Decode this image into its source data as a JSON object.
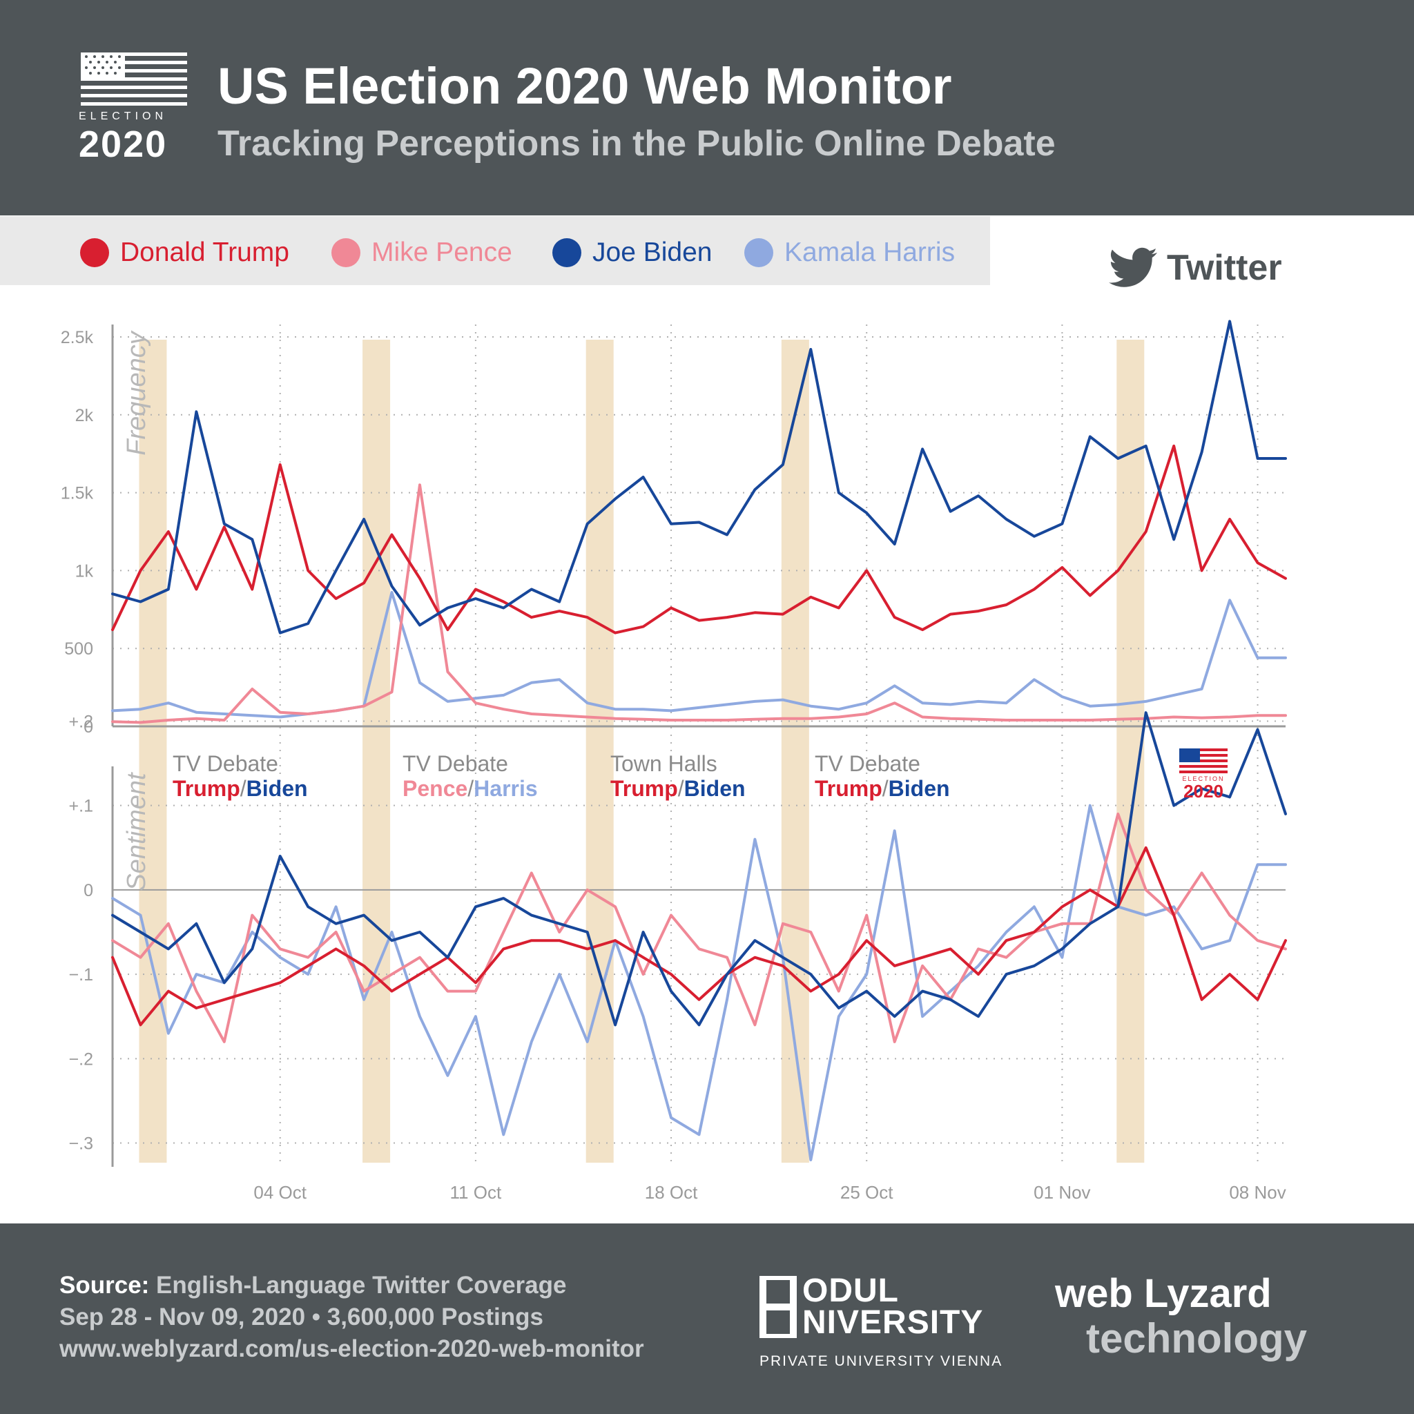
{
  "header": {
    "logo_small": "ELECTION",
    "logo_year": "2020",
    "title": "US Election 2020 Web Monitor",
    "subtitle": "Tracking Perceptions in the Public Online Debate"
  },
  "legend": [
    {
      "name": "Donald Trump",
      "color": "#d81f30"
    },
    {
      "name": "Mike Pence",
      "color": "#f08896"
    },
    {
      "name": "Joe Biden",
      "color": "#17479a"
    },
    {
      "name": "Kamala Harris",
      "color": "#8fa9e0"
    }
  ],
  "platform": {
    "label": "Twitter",
    "icon": "twitter-bird-icon"
  },
  "chart_data": [
    {
      "type": "line",
      "title": "",
      "ylabel": "Frequency",
      "xlabel": "",
      "ylim": [
        0,
        2500
      ],
      "yticks": [
        0,
        500,
        1000,
        1500,
        2000,
        2500
      ],
      "ytick_labels": [
        "0",
        "500",
        "1k",
        "1.5k",
        "2k",
        "2.5k"
      ],
      "x_start": "2020-09-28",
      "x_end": "2020-11-09",
      "grid": true,
      "series": [
        {
          "name": "Donald Trump",
          "color": "#d81f30",
          "x": [
            "2020-09-28",
            "2020-09-29",
            "2020-09-30",
            "2020-10-01",
            "2020-10-02",
            "2020-10-03",
            "2020-10-04",
            "2020-10-05",
            "2020-10-06",
            "2020-10-07",
            "2020-10-08",
            "2020-10-09",
            "2020-10-10",
            "2020-10-11",
            "2020-10-12",
            "2020-10-13",
            "2020-10-14",
            "2020-10-15",
            "2020-10-16",
            "2020-10-17",
            "2020-10-18",
            "2020-10-19",
            "2020-10-20",
            "2020-10-21",
            "2020-10-22",
            "2020-10-23",
            "2020-10-24",
            "2020-10-25",
            "2020-10-26",
            "2020-10-27",
            "2020-10-28",
            "2020-10-29",
            "2020-10-30",
            "2020-10-31",
            "2020-11-01",
            "2020-11-02",
            "2020-11-03",
            "2020-11-04",
            "2020-11-05",
            "2020-11-06",
            "2020-11-07",
            "2020-11-08",
            "2020-11-09"
          ],
          "values": [
            620,
            1000,
            1250,
            880,
            1280,
            880,
            1680,
            1000,
            820,
            920,
            1230,
            950,
            620,
            880,
            800,
            700,
            740,
            700,
            600,
            640,
            760,
            680,
            700,
            730,
            720,
            830,
            760,
            1000,
            700,
            620,
            720,
            740,
            780,
            880,
            1020,
            840,
            1000,
            1250,
            1800,
            1000,
            1330,
            1050,
            950
          ]
        },
        {
          "name": "Mike Pence",
          "color": "#f08896",
          "x": [
            "2020-09-28",
            "2020-09-29",
            "2020-09-30",
            "2020-10-01",
            "2020-10-02",
            "2020-10-03",
            "2020-10-04",
            "2020-10-05",
            "2020-10-06",
            "2020-10-07",
            "2020-10-08",
            "2020-10-09",
            "2020-10-10",
            "2020-10-11",
            "2020-10-12",
            "2020-10-13",
            "2020-10-14",
            "2020-10-15",
            "2020-10-16",
            "2020-10-17",
            "2020-10-18",
            "2020-10-19",
            "2020-10-20",
            "2020-10-21",
            "2020-10-22",
            "2020-10-23",
            "2020-10-24",
            "2020-10-25",
            "2020-10-26",
            "2020-10-27",
            "2020-10-28",
            "2020-10-29",
            "2020-10-30",
            "2020-10-31",
            "2020-11-01",
            "2020-11-02",
            "2020-11-03",
            "2020-11-04",
            "2020-11-05",
            "2020-11-06",
            "2020-11-07",
            "2020-11-08",
            "2020-11-09"
          ],
          "values": [
            30,
            25,
            40,
            50,
            40,
            240,
            90,
            80,
            100,
            130,
            220,
            1550,
            350,
            150,
            110,
            80,
            70,
            60,
            50,
            45,
            40,
            40,
            40,
            45,
            50,
            50,
            60,
            80,
            150,
            60,
            50,
            45,
            40,
            40,
            40,
            40,
            45,
            50,
            60,
            55,
            60,
            70,
            70
          ]
        },
        {
          "name": "Joe Biden",
          "color": "#17479a",
          "x": [
            "2020-09-28",
            "2020-09-29",
            "2020-09-30",
            "2020-10-01",
            "2020-10-02",
            "2020-10-03",
            "2020-10-04",
            "2020-10-05",
            "2020-10-06",
            "2020-10-07",
            "2020-10-08",
            "2020-10-09",
            "2020-10-10",
            "2020-10-11",
            "2020-10-12",
            "2020-10-13",
            "2020-10-14",
            "2020-10-15",
            "2020-10-16",
            "2020-10-17",
            "2020-10-18",
            "2020-10-19",
            "2020-10-20",
            "2020-10-21",
            "2020-10-22",
            "2020-10-23",
            "2020-10-24",
            "2020-10-25",
            "2020-10-26",
            "2020-10-27",
            "2020-10-28",
            "2020-10-29",
            "2020-10-30",
            "2020-10-31",
            "2020-11-01",
            "2020-11-02",
            "2020-11-03",
            "2020-11-04",
            "2020-11-05",
            "2020-11-06",
            "2020-11-07",
            "2020-11-08",
            "2020-11-09"
          ],
          "values": [
            850,
            800,
            880,
            2020,
            1300,
            1200,
            600,
            660,
            1000,
            1330,
            900,
            650,
            760,
            820,
            760,
            880,
            800,
            1300,
            1460,
            1600,
            1300,
            1310,
            1230,
            1520,
            1680,
            2420,
            1500,
            1370,
            1170,
            1780,
            1380,
            1480,
            1330,
            1220,
            1300,
            1860,
            1720,
            1800,
            1200,
            1760,
            2600,
            1720,
            1720
          ]
        },
        {
          "name": "Kamala Harris",
          "color": "#8fa9e0",
          "x": [
            "2020-09-28",
            "2020-09-29",
            "2020-09-30",
            "2020-10-01",
            "2020-10-02",
            "2020-10-03",
            "2020-10-04",
            "2020-10-05",
            "2020-10-06",
            "2020-10-07",
            "2020-10-08",
            "2020-10-09",
            "2020-10-10",
            "2020-10-11",
            "2020-10-12",
            "2020-10-13",
            "2020-10-14",
            "2020-10-15",
            "2020-10-16",
            "2020-10-17",
            "2020-10-18",
            "2020-10-19",
            "2020-10-20",
            "2020-10-21",
            "2020-10-22",
            "2020-10-23",
            "2020-10-24",
            "2020-10-25",
            "2020-10-26",
            "2020-10-27",
            "2020-10-28",
            "2020-10-29",
            "2020-10-30",
            "2020-10-31",
            "2020-11-01",
            "2020-11-02",
            "2020-11-03",
            "2020-11-04",
            "2020-11-05",
            "2020-11-06",
            "2020-11-07",
            "2020-11-08",
            "2020-11-09"
          ],
          "values": [
            100,
            110,
            150,
            90,
            80,
            70,
            60,
            80,
            100,
            130,
            860,
            280,
            160,
            180,
            200,
            280,
            300,
            150,
            110,
            110,
            100,
            120,
            140,
            160,
            170,
            130,
            110,
            150,
            260,
            150,
            140,
            160,
            150,
            300,
            190,
            130,
            140,
            160,
            200,
            240,
            810,
            440,
            440
          ]
        }
      ]
    },
    {
      "type": "line",
      "title": "",
      "ylabel": "Sentiment",
      "xlabel": "",
      "ylim": [
        -0.3,
        0.2
      ],
      "yticks": [
        -0.3,
        -0.2,
        -0.1,
        0,
        0.1,
        0.2
      ],
      "ytick_labels": [
        "−.3",
        "−.2",
        "−.1",
        "0",
        "+.1",
        "+.2"
      ],
      "x_tick_labels": [
        "04 Oct",
        "11 Oct",
        "18 Oct",
        "25 Oct",
        "01 Nov",
        "08 Nov"
      ],
      "x_ticks": [
        "2020-10-04",
        "2020-10-11",
        "2020-10-18",
        "2020-10-25",
        "2020-11-01",
        "2020-11-08"
      ],
      "grid": true,
      "series": [
        {
          "name": "Donald Trump",
          "color": "#d81f30",
          "x": [
            "2020-09-28",
            "2020-09-29",
            "2020-09-30",
            "2020-10-01",
            "2020-10-02",
            "2020-10-03",
            "2020-10-04",
            "2020-10-05",
            "2020-10-06",
            "2020-10-07",
            "2020-10-08",
            "2020-10-09",
            "2020-10-10",
            "2020-10-11",
            "2020-10-12",
            "2020-10-13",
            "2020-10-14",
            "2020-10-15",
            "2020-10-16",
            "2020-10-17",
            "2020-10-18",
            "2020-10-19",
            "2020-10-20",
            "2020-10-21",
            "2020-10-22",
            "2020-10-23",
            "2020-10-24",
            "2020-10-25",
            "2020-10-26",
            "2020-10-27",
            "2020-10-28",
            "2020-10-29",
            "2020-10-30",
            "2020-10-31",
            "2020-11-01",
            "2020-11-02",
            "2020-11-03",
            "2020-11-04",
            "2020-11-05",
            "2020-11-06",
            "2020-11-07",
            "2020-11-08",
            "2020-11-09"
          ],
          "values": [
            -0.08,
            -0.16,
            -0.12,
            -0.14,
            -0.13,
            -0.12,
            -0.11,
            -0.09,
            -0.07,
            -0.09,
            -0.12,
            -0.1,
            -0.08,
            -0.11,
            -0.07,
            -0.06,
            -0.06,
            -0.07,
            -0.06,
            -0.08,
            -0.1,
            -0.13,
            -0.1,
            -0.08,
            -0.09,
            -0.12,
            -0.1,
            -0.06,
            -0.09,
            -0.08,
            -0.07,
            -0.1,
            -0.06,
            -0.05,
            -0.02,
            0.0,
            -0.02,
            0.05,
            -0.03,
            -0.13,
            -0.1,
            -0.13,
            -0.06
          ]
        },
        {
          "name": "Mike Pence",
          "color": "#f08896",
          "x": [
            "2020-09-28",
            "2020-09-29",
            "2020-09-30",
            "2020-10-01",
            "2020-10-02",
            "2020-10-03",
            "2020-10-04",
            "2020-10-05",
            "2020-10-06",
            "2020-10-07",
            "2020-10-08",
            "2020-10-09",
            "2020-10-10",
            "2020-10-11",
            "2020-10-12",
            "2020-10-13",
            "2020-10-14",
            "2020-10-15",
            "2020-10-16",
            "2020-10-17",
            "2020-10-18",
            "2020-10-19",
            "2020-10-20",
            "2020-10-21",
            "2020-10-22",
            "2020-10-23",
            "2020-10-24",
            "2020-10-25",
            "2020-10-26",
            "2020-10-27",
            "2020-10-28",
            "2020-10-29",
            "2020-10-30",
            "2020-10-31",
            "2020-11-01",
            "2020-11-02",
            "2020-11-03",
            "2020-11-04",
            "2020-11-05",
            "2020-11-06",
            "2020-11-07",
            "2020-11-08",
            "2020-11-09"
          ],
          "values": [
            -0.06,
            -0.08,
            -0.04,
            -0.12,
            -0.18,
            -0.03,
            -0.07,
            -0.08,
            -0.05,
            -0.12,
            -0.1,
            -0.08,
            -0.12,
            -0.12,
            -0.05,
            0.02,
            -0.05,
            0.0,
            -0.02,
            -0.1,
            -0.03,
            -0.07,
            -0.08,
            -0.16,
            -0.04,
            -0.05,
            -0.12,
            -0.03,
            -0.18,
            -0.09,
            -0.13,
            -0.07,
            -0.08,
            -0.05,
            -0.04,
            -0.04,
            0.09,
            0.0,
            -0.03,
            0.02,
            -0.03,
            -0.06,
            -0.07
          ]
        },
        {
          "name": "Joe Biden",
          "color": "#17479a",
          "x": [
            "2020-09-28",
            "2020-09-29",
            "2020-09-30",
            "2020-10-01",
            "2020-10-02",
            "2020-10-03",
            "2020-10-04",
            "2020-10-05",
            "2020-10-06",
            "2020-10-07",
            "2020-10-08",
            "2020-10-09",
            "2020-10-10",
            "2020-10-11",
            "2020-10-12",
            "2020-10-13",
            "2020-10-14",
            "2020-10-15",
            "2020-10-16",
            "2020-10-17",
            "2020-10-18",
            "2020-10-19",
            "2020-10-20",
            "2020-10-21",
            "2020-10-22",
            "2020-10-23",
            "2020-10-24",
            "2020-10-25",
            "2020-10-26",
            "2020-10-27",
            "2020-10-28",
            "2020-10-29",
            "2020-10-30",
            "2020-10-31",
            "2020-11-01",
            "2020-11-02",
            "2020-11-03",
            "2020-11-04",
            "2020-11-05",
            "2020-11-06",
            "2020-11-07",
            "2020-11-08",
            "2020-11-09"
          ],
          "values": [
            -0.03,
            -0.05,
            -0.07,
            -0.04,
            -0.11,
            -0.07,
            0.04,
            -0.02,
            -0.04,
            -0.03,
            -0.06,
            -0.05,
            -0.08,
            -0.02,
            -0.01,
            -0.03,
            -0.04,
            -0.05,
            -0.16,
            -0.05,
            -0.12,
            -0.16,
            -0.1,
            -0.06,
            -0.08,
            -0.1,
            -0.14,
            -0.12,
            -0.15,
            -0.12,
            -0.13,
            -0.15,
            -0.1,
            -0.09,
            -0.07,
            -0.04,
            -0.02,
            0.21,
            0.1,
            0.12,
            0.11,
            0.19,
            0.09
          ]
        },
        {
          "name": "Kamala Harris",
          "color": "#8fa9e0",
          "x": [
            "2020-09-28",
            "2020-09-29",
            "2020-09-30",
            "2020-10-01",
            "2020-10-02",
            "2020-10-03",
            "2020-10-04",
            "2020-10-05",
            "2020-10-06",
            "2020-10-07",
            "2020-10-08",
            "2020-10-09",
            "2020-10-10",
            "2020-10-11",
            "2020-10-12",
            "2020-10-13",
            "2020-10-14",
            "2020-10-15",
            "2020-10-16",
            "2020-10-17",
            "2020-10-18",
            "2020-10-19",
            "2020-10-20",
            "2020-10-21",
            "2020-10-22",
            "2020-10-23",
            "2020-10-24",
            "2020-10-25",
            "2020-10-26",
            "2020-10-27",
            "2020-10-28",
            "2020-10-29",
            "2020-10-30",
            "2020-10-31",
            "2020-11-01",
            "2020-11-02",
            "2020-11-03",
            "2020-11-04",
            "2020-11-05",
            "2020-11-06",
            "2020-11-07",
            "2020-11-08",
            "2020-11-09"
          ],
          "values": [
            -0.01,
            -0.03,
            -0.17,
            -0.1,
            -0.11,
            -0.05,
            -0.08,
            -0.1,
            -0.02,
            -0.13,
            -0.05,
            -0.15,
            -0.22,
            -0.15,
            -0.29,
            -0.18,
            -0.1,
            -0.18,
            -0.06,
            -0.15,
            -0.27,
            -0.29,
            -0.13,
            0.06,
            -0.08,
            -0.32,
            -0.15,
            -0.1,
            0.07,
            -0.15,
            -0.12,
            -0.09,
            -0.05,
            -0.02,
            -0.08,
            0.1,
            -0.02,
            -0.03,
            -0.02,
            -0.07,
            -0.06,
            0.03,
            0.03
          ]
        }
      ]
    }
  ],
  "annotations": [
    {
      "line1": "TV Debate",
      "first": "Trump",
      "sep": "/",
      "second": "Biden",
      "first_color": "#d81f30",
      "second_color": "#17479a"
    },
    {
      "line1": "TV Debate",
      "first": "Pence",
      "sep": "/",
      "second": "Harris",
      "first_color": "#f08896",
      "second_color": "#8fa9e0"
    },
    {
      "line1": "Town Halls",
      "first": "Trump",
      "sep": "/",
      "second": "Biden",
      "first_color": "#d81f30",
      "second_color": "#17479a"
    },
    {
      "line1": "TV Debate",
      "first": "Trump",
      "sep": "/",
      "second": "Biden",
      "first_color": "#d81f30",
      "second_color": "#17479a"
    }
  ],
  "event_bands": [
    "2020-09-29",
    "2020-10-07",
    "2020-10-15",
    "2020-10-22",
    "2020-11-03"
  ],
  "election_badge": {
    "small": "ELECTION",
    "year": "2020"
  },
  "footer": {
    "source_key": "Source:",
    "source_value": "English-Language Twitter Coverage",
    "period": "Sep 28 - Nov 09, 2020 • 3,600,000 Postings",
    "url": "www.weblyzard.com/us-election-2020-web-monitor",
    "modul_line1": "ODUL",
    "modul_line2": "NIVERSITY",
    "modul_line3": "PRIVATE UNIVERSITY VIENNA",
    "weblyzard_line1": "web Lyzard",
    "weblyzard_line2": "technology"
  },
  "colors": {
    "header_bg": "#4f5558",
    "band": "#f2e2c7",
    "axis": "#9a9a9a"
  }
}
